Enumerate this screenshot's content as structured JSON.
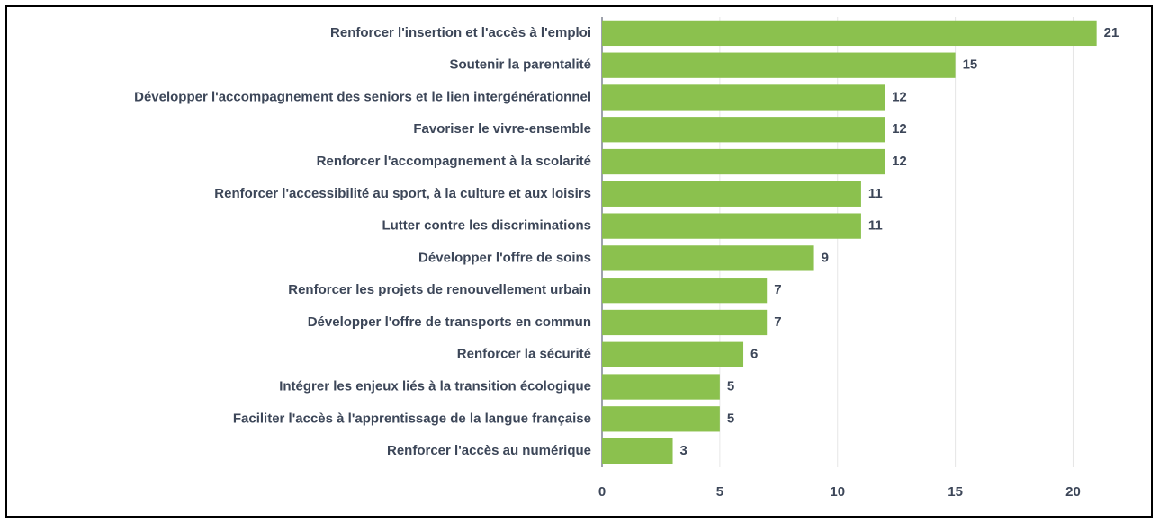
{
  "chart_data": {
    "type": "bar",
    "orientation": "horizontal",
    "categories": [
      "Renforcer l'insertion et l'accès à l'emploi",
      "Soutenir la parentalité",
      "Développer l'accompagnement des seniors et le lien intergénérationnel",
      "Favoriser le vivre-ensemble",
      "Renforcer l'accompagnement à la scolarité",
      "Renforcer l'accessibilité au sport, à la culture et aux loisirs",
      "Lutter contre les discriminations",
      "Développer l'offre de soins",
      "Renforcer les projets de renouvellement urbain",
      "Développer l'offre de transports en commun",
      "Renforcer la sécurité",
      "Intégrer les enjeux liés à la transition écologique",
      "Faciliter l'accès à l'apprentissage de la langue française",
      "Renforcer l'accès au numérique"
    ],
    "values": [
      21,
      15,
      12,
      12,
      12,
      11,
      11,
      9,
      7,
      7,
      6,
      5,
      5,
      3
    ],
    "color": "#8bc14e",
    "xlim": [
      0,
      23
    ],
    "xticks": [
      0,
      5,
      10,
      15,
      20
    ],
    "grid": true
  }
}
